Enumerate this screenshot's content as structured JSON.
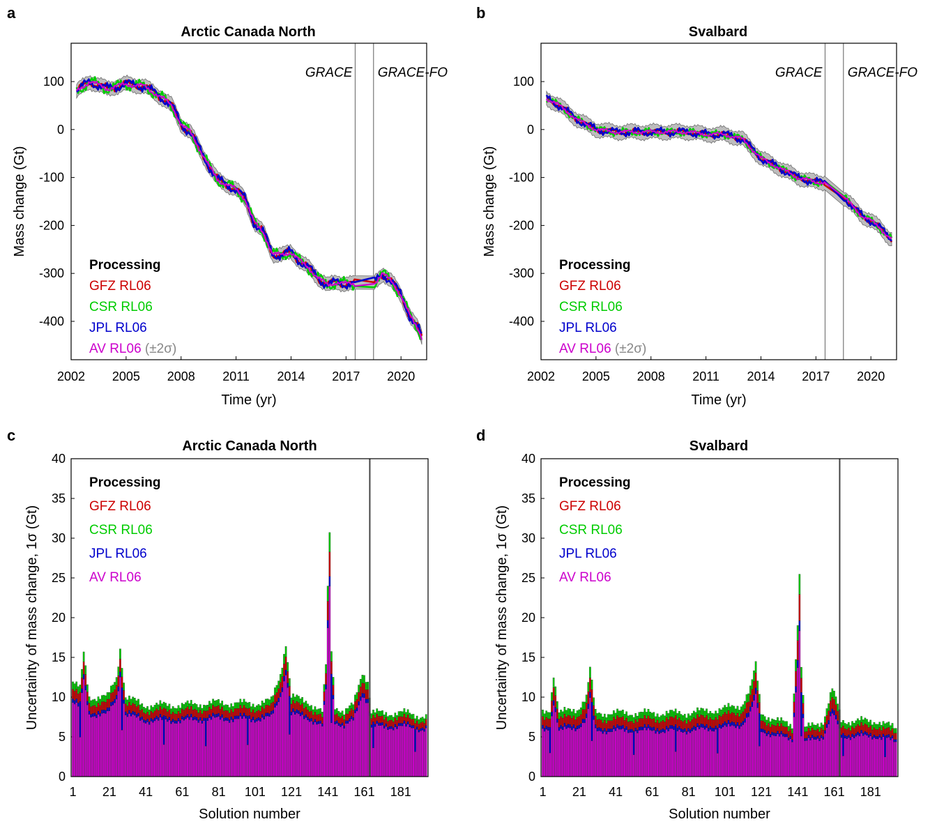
{
  "panels": {
    "a": {
      "letter": "a",
      "title": "Arctic Canada North"
    },
    "b": {
      "letter": "b",
      "title": "Svalbard"
    },
    "c": {
      "letter": "c",
      "title": "Arctic Canada North"
    },
    "d": {
      "letter": "d",
      "title": "Svalbard"
    }
  },
  "legend": {
    "title": "Processing",
    "items": [
      {
        "label": "GFZ RL06",
        "color": "#cc0000"
      },
      {
        "label": "CSR RL06",
        "color": "#00cc00"
      },
      {
        "label": "JPL RL06",
        "color": "#0000cc"
      },
      {
        "label": "AV RL06",
        "color": "#cc00cc"
      }
    ],
    "sigma_note": "(±2σ)",
    "sigma_color": "#888888"
  },
  "annotations": {
    "grace": "GRACE",
    "grace_fo": "GRACE-FO"
  },
  "chart_data": [
    {
      "panel": "a",
      "type": "line",
      "title": "Arctic Canada North",
      "xlabel": "Time (yr)",
      "ylabel": "Mass change (Gt)",
      "xlim": [
        2002,
        2021.4
      ],
      "ylim": [
        -480,
        180
      ],
      "xticks": [
        2002,
        2005,
        2008,
        2011,
        2014,
        2017,
        2020
      ],
      "yticks": [
        100,
        0,
        -100,
        -200,
        -300,
        -400
      ],
      "ytick_labels": [
        "100",
        "0",
        "-100",
        "-200",
        "-300",
        "-400"
      ],
      "gap_lines": [
        2017.5,
        2018.5
      ],
      "legend_position": "bottom-left",
      "uncertainty_band": "±2σ",
      "anchors": [
        [
          2002.3,
          80
        ],
        [
          2003.0,
          100
        ],
        [
          2004.0,
          85
        ],
        [
          2005.0,
          95
        ],
        [
          2006.0,
          90
        ],
        [
          2007.0,
          65
        ],
        [
          2007.5,
          50
        ],
        [
          2008.0,
          10
        ],
        [
          2008.5,
          -5
        ],
        [
          2009.0,
          -40
        ],
        [
          2009.5,
          -75
        ],
        [
          2010.0,
          -105
        ],
        [
          2010.5,
          -115
        ],
        [
          2011.0,
          -125
        ],
        [
          2011.5,
          -145
        ],
        [
          2012.0,
          -195
        ],
        [
          2012.5,
          -215
        ],
        [
          2013.0,
          -260
        ],
        [
          2013.5,
          -262
        ],
        [
          2014.0,
          -255
        ],
        [
          2014.5,
          -275
        ],
        [
          2015.0,
          -290
        ],
        [
          2015.5,
          -310
        ],
        [
          2016.0,
          -325
        ],
        [
          2016.5,
          -318
        ],
        [
          2017.0,
          -322
        ],
        [
          2017.5,
          -322
        ],
        [
          2018.5,
          -322
        ],
        [
          2019.0,
          -300
        ],
        [
          2019.5,
          -318
        ],
        [
          2020.0,
          -345
        ],
        [
          2020.5,
          -390
        ],
        [
          2021.0,
          -420
        ],
        [
          2021.2,
          -440
        ]
      ],
      "series": [
        {
          "name": "GFZ RL06",
          "color": "#cc0000",
          "noise": 10
        },
        {
          "name": "CSR RL06",
          "color": "#00cc00",
          "noise": 14
        },
        {
          "name": "JPL RL06",
          "color": "#0000cc",
          "noise": 12
        },
        {
          "name": "AV RL06",
          "color": "#cc00cc",
          "noise": 6
        }
      ]
    },
    {
      "panel": "b",
      "type": "line",
      "title": "Svalbard",
      "xlabel": "Time (yr)",
      "ylabel": "Mass change (Gt)",
      "xlim": [
        2002,
        2021.4
      ],
      "ylim": [
        -480,
        180
      ],
      "xticks": [
        2002,
        2005,
        2008,
        2011,
        2014,
        2017,
        2020
      ],
      "yticks": [
        100,
        0,
        -100,
        -200,
        -300,
        -400
      ],
      "ytick_labels": [
        "100",
        "0",
        "-100",
        "-200",
        "-300",
        "-400"
      ],
      "gap_lines": [
        2017.5,
        2018.5
      ],
      "legend_position": "bottom-left",
      "uncertainty_band": "±2σ",
      "anchors": [
        [
          2002.3,
          65
        ],
        [
          2003.0,
          50
        ],
        [
          2004.0,
          20
        ],
        [
          2005.0,
          0
        ],
        [
          2006.0,
          -5
        ],
        [
          2007.0,
          -5
        ],
        [
          2008.0,
          -5
        ],
        [
          2009.0,
          -5
        ],
        [
          2010.0,
          -5
        ],
        [
          2011.0,
          -10
        ],
        [
          2012.0,
          -10
        ],
        [
          2013.0,
          -20
        ],
        [
          2014.0,
          -60
        ],
        [
          2015.0,
          -80
        ],
        [
          2016.0,
          -100
        ],
        [
          2017.0,
          -110
        ],
        [
          2017.5,
          -110
        ],
        [
          2018.5,
          -140
        ],
        [
          2019.0,
          -160
        ],
        [
          2019.5,
          -180
        ],
        [
          2020.0,
          -190
        ],
        [
          2020.5,
          -205
        ],
        [
          2021.0,
          -225
        ],
        [
          2021.2,
          -230
        ]
      ],
      "series": [
        {
          "name": "GFZ RL06",
          "color": "#cc0000",
          "noise": 7
        },
        {
          "name": "CSR RL06",
          "color": "#00cc00",
          "noise": 9
        },
        {
          "name": "JPL RL06",
          "color": "#0000cc",
          "noise": 10
        },
        {
          "name": "AV RL06",
          "color": "#cc00cc",
          "noise": 5
        }
      ]
    },
    {
      "panel": "c",
      "type": "bar",
      "stacked": true,
      "title": "Arctic Canada North",
      "xlabel": "Solution number",
      "ylabel": "Uncertainty of mass change, 1σ (Gt)",
      "xlim": [
        0,
        196
      ],
      "ylim": [
        0,
        40
      ],
      "n_solutions": 195,
      "xticks": [
        1,
        21,
        41,
        61,
        81,
        101,
        121,
        141,
        161,
        181
      ],
      "yticks": [
        0,
        5,
        10,
        15,
        20,
        25,
        30,
        35,
        40
      ],
      "gap_line": 164,
      "legend_position": "top-left",
      "total_profile": [
        [
          1,
          12
        ],
        [
          5,
          11
        ],
        [
          7,
          15.5
        ],
        [
          10,
          10
        ],
        [
          20,
          10
        ],
        [
          25,
          12.5
        ],
        [
          27,
          16.2
        ],
        [
          30,
          10
        ],
        [
          40,
          9
        ],
        [
          60,
          9
        ],
        [
          80,
          9.3
        ],
        [
          100,
          9.2
        ],
        [
          110,
          9.5
        ],
        [
          115,
          13
        ],
        [
          118,
          16.8
        ],
        [
          121,
          10
        ],
        [
          130,
          9.5
        ],
        [
          138,
          8
        ],
        [
          140,
          14
        ],
        [
          141,
          23.7
        ],
        [
          142,
          30.6
        ],
        [
          143,
          16
        ],
        [
          145,
          9
        ],
        [
          150,
          8
        ],
        [
          155,
          9
        ],
        [
          160,
          13.3
        ],
        [
          163,
          12
        ],
        [
          165,
          8
        ],
        [
          175,
          8
        ],
        [
          185,
          8
        ],
        [
          195,
          7.5
        ]
      ],
      "series": [
        {
          "name": "AV RL06",
          "color": "#cc00cc",
          "fraction": 0.78
        },
        {
          "name": "JPL RL06",
          "color": "#0000cc",
          "fraction": 0.04
        },
        {
          "name": "GFZ RL06",
          "color": "#cc0000",
          "fraction": 0.1
        },
        {
          "name": "CSR RL06",
          "color": "#00cc00",
          "fraction": 0.08
        }
      ]
    },
    {
      "panel": "d",
      "type": "bar",
      "stacked": true,
      "title": "Svalbard",
      "xlabel": "Solution number",
      "ylabel": "Uncertainty of mass change, 1σ (Gt)",
      "xlim": [
        0,
        196
      ],
      "ylim": [
        0,
        40
      ],
      "n_solutions": 195,
      "xticks": [
        1,
        21,
        41,
        61,
        81,
        101,
        121,
        141,
        161,
        181
      ],
      "yticks": [
        0,
        5,
        10,
        15,
        20,
        25,
        30,
        35,
        40
      ],
      "gap_line": 164,
      "legend_position": "top-left",
      "total_profile": [
        [
          1,
          8
        ],
        [
          5,
          8.5
        ],
        [
          7,
          13
        ],
        [
          10,
          8
        ],
        [
          20,
          8.5
        ],
        [
          25,
          10
        ],
        [
          27,
          13.5
        ],
        [
          30,
          8
        ],
        [
          40,
          8
        ],
        [
          60,
          8
        ],
        [
          80,
          8
        ],
        [
          100,
          8.5
        ],
        [
          110,
          9
        ],
        [
          115,
          11
        ],
        [
          118,
          14
        ],
        [
          121,
          8
        ],
        [
          130,
          7
        ],
        [
          138,
          6.5
        ],
        [
          140,
          15
        ],
        [
          141,
          19.5
        ],
        [
          142,
          25.4
        ],
        [
          143,
          14
        ],
        [
          145,
          6
        ],
        [
          150,
          6.5
        ],
        [
          155,
          7
        ],
        [
          160,
          11
        ],
        [
          163,
          9
        ],
        [
          165,
          7
        ],
        [
          175,
          7
        ],
        [
          185,
          7
        ],
        [
          195,
          6
        ]
      ],
      "series": [
        {
          "name": "AV RL06",
          "color": "#cc00cc",
          "fraction": 0.72
        },
        {
          "name": "JPL RL06",
          "color": "#0000cc",
          "fraction": 0.05
        },
        {
          "name": "GFZ RL06",
          "color": "#cc0000",
          "fraction": 0.13
        },
        {
          "name": "CSR RL06",
          "color": "#00cc00",
          "fraction": 0.1
        }
      ]
    }
  ]
}
